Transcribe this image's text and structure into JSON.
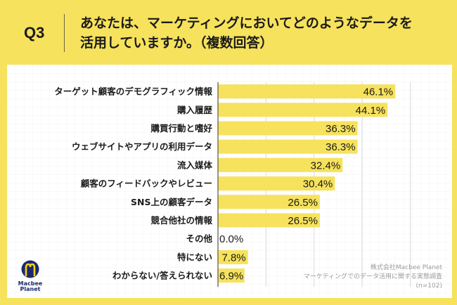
{
  "header": {
    "question_number": "Q3",
    "title_line1": "あなたは、マーケティングにおいてどのようなデータを",
    "title_line2": "活用していますか。（複数回答）"
  },
  "colors": {
    "background": "#f6e25c",
    "bar": "#f6e25c",
    "panel": "#ffffff",
    "axis": "#555555",
    "gridline": "#d9d9d9",
    "logo_navy": "#1b2a6b",
    "logo_yellow": "#f6d21e"
  },
  "chart_data": {
    "type": "bar",
    "orientation": "horizontal",
    "title": "あなたは、マーケティングにおいてどのようなデータを活用していますか。（複数回答）",
    "xlabel": "",
    "ylabel": "",
    "xlim": [
      0,
      50
    ],
    "grid": true,
    "grid_step": 12.5,
    "value_suffix": "%",
    "categories": [
      "ターゲット顧客のデモグラフィック情報",
      "購入履歴",
      "購買行動と嗜好",
      "ウェブサイトやアプリの利用データ",
      "流入媒体",
      "顧客のフィードバックやレビュー",
      "SNS上の顧客データ",
      "競合他社の情報",
      "その他",
      "特にない",
      "わからない/答えられない"
    ],
    "values": [
      46.1,
      44.1,
      36.3,
      36.3,
      32.4,
      30.4,
      26.5,
      26.5,
      0.0,
      7.8,
      6.9
    ],
    "value_labels": [
      "46.1%",
      "44.1%",
      "36.3%",
      "36.3%",
      "32.4%",
      "30.4%",
      "26.5%",
      "26.5%",
      "0.0%",
      "7.8%",
      "6.9%"
    ]
  },
  "source": {
    "company": "株式会社Macbee Planet",
    "survey": "マーケティングでのデータ活用に関する実態調査",
    "sample": "(n=102)"
  },
  "logo": {
    "line1": "Macbee",
    "line2": "Planet",
    "icon": "macbee-planet-logo-icon"
  }
}
